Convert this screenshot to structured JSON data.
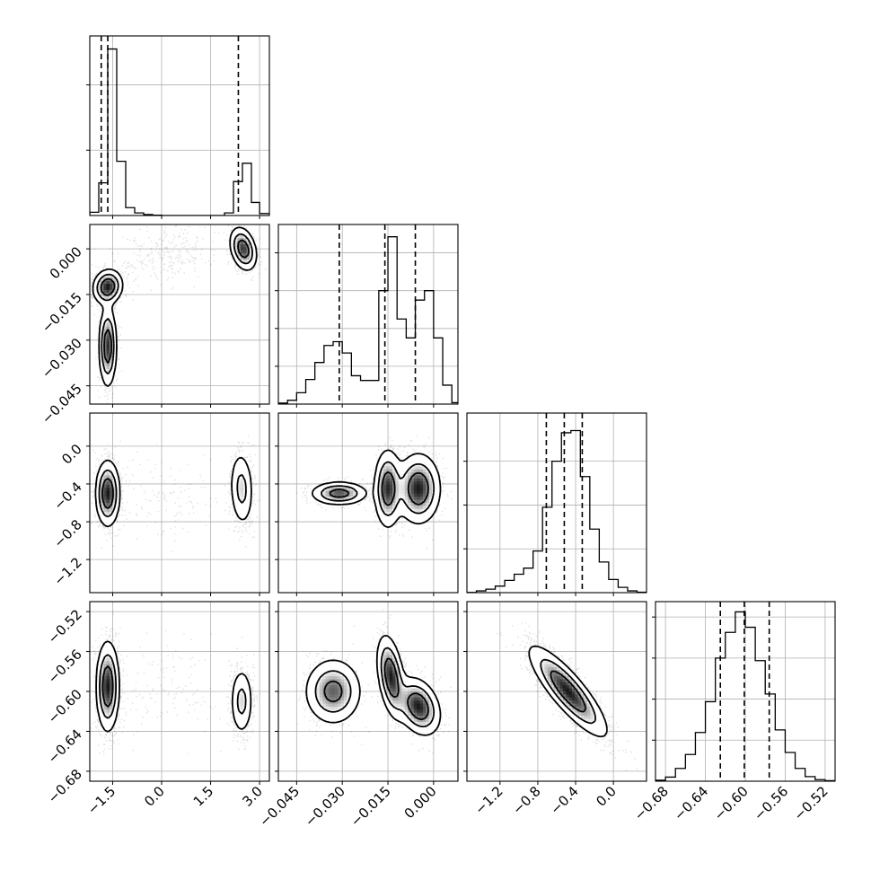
{
  "chart_data": {
    "type": "corner",
    "parameters": [
      {
        "range": [
          -2.2,
          3.3
        ],
        "ticks": [
          -1.5,
          0.0,
          1.5,
          3.0
        ],
        "tick_labels": [
          "−1.5",
          "0.0",
          "1.5",
          "3.0"
        ],
        "histogram": {
          "bin_edges": [
            -2.2,
            -1.925,
            -1.65,
            -1.375,
            -1.1,
            -0.825,
            -0.55,
            -0.275,
            0.0,
            0.275,
            0.55,
            0.825,
            1.1,
            1.375,
            1.65,
            1.925,
            2.2,
            2.475,
            2.75,
            3.0,
            3.3
          ],
          "counts": [
            50,
            500,
            2550,
            830,
            120,
            40,
            15,
            5,
            0,
            0,
            0,
            0,
            0,
            0,
            0,
            40,
            520,
            800,
            200,
            30
          ]
        },
        "hist_ylim": [
          0,
          2750
        ],
        "hist_yticks": [
          1000,
          2000
        ],
        "quantiles": [
          -1.85,
          -1.65,
          2.35
        ]
      },
      {
        "range": [
          -0.051,
          0.008
        ],
        "ticks": [
          -0.045,
          -0.03,
          -0.015,
          0.0
        ],
        "tick_labels": [
          "−0.045",
          "−0.030",
          "−0.015",
          "0.000"
        ],
        "histogram": {
          "bin_edges": [
            -0.051,
            -0.048,
            -0.045,
            -0.042,
            -0.039,
            -0.036,
            -0.033,
            -0.03,
            -0.027,
            -0.024,
            -0.021,
            -0.018,
            -0.015,
            -0.012,
            -0.009,
            -0.006,
            -0.003,
            0.0,
            0.003,
            0.006,
            0.008
          ],
          "counts": [
            10,
            40,
            120,
            260,
            440,
            620,
            660,
            540,
            300,
            250,
            250,
            1200,
            1770,
            900,
            700,
            1100,
            1200,
            700,
            200,
            15
          ]
        },
        "hist_ylim": [
          0,
          1900
        ],
        "hist_yticks": [
          400,
          800,
          1200,
          1600
        ],
        "quantiles": [
          -0.031,
          -0.016,
          -0.006
        ]
      },
      {
        "range": [
          -1.55,
          0.35
        ],
        "ticks": [
          -1.2,
          -0.8,
          -0.4,
          0.0
        ],
        "tick_labels": [
          "−1.2",
          "−0.8",
          "−0.4",
          "0.0"
        ],
        "histogram": {
          "bin_edges": [
            -1.55,
            -1.45,
            -1.35,
            -1.25,
            -1.15,
            -1.05,
            -0.95,
            -0.85,
            -0.75,
            -0.65,
            -0.55,
            -0.45,
            -0.35,
            -0.25,
            -0.15,
            -0.05,
            0.05,
            0.15,
            0.25,
            0.35
          ],
          "counts": [
            5,
            40,
            80,
            150,
            280,
            420,
            560,
            950,
            1950,
            3000,
            3650,
            3700,
            2650,
            1450,
            700,
            300,
            120,
            40,
            10
          ]
        },
        "hist_ylim": [
          0,
          4100
        ],
        "hist_yticks": [
          1000,
          2000,
          3000
        ],
        "quantiles": [
          -0.71,
          -0.52,
          -0.33
        ]
      },
      {
        "range": [
          -0.69,
          -0.51
        ],
        "ticks": [
          -0.68,
          -0.64,
          -0.6,
          -0.56,
          -0.52
        ],
        "tick_labels": [
          "−0.68",
          "−0.64",
          "−0.60",
          "−0.56",
          "−0.52"
        ],
        "histogram": {
          "bin_edges": [
            -0.69,
            -0.68,
            -0.67,
            -0.66,
            -0.65,
            -0.64,
            -0.63,
            -0.62,
            -0.61,
            -0.6,
            -0.59,
            -0.58,
            -0.57,
            -0.56,
            -0.55,
            -0.54,
            -0.53,
            -0.52,
            -0.51
          ],
          "counts": [
            20,
            80,
            250,
            520,
            950,
            1550,
            2400,
            2900,
            3300,
            3000,
            2350,
            1700,
            1000,
            560,
            250,
            90,
            30,
            10
          ]
        },
        "hist_ylim": [
          0,
          3500
        ],
        "hist_yticks": [
          800,
          1600,
          2400,
          3200
        ],
        "quantiles": [
          -0.625,
          -0.601,
          -0.576
        ]
      }
    ],
    "pairs": [
      {
        "x": 0,
        "y": 1,
        "modes": [
          {
            "mx": -1.65,
            "my": -0.0125,
            "sx": 0.22,
            "sy": 0.0028,
            "w": 0.32,
            "rho": 0.1
          },
          {
            "mx": -1.65,
            "my": -0.032,
            "sx": 0.13,
            "sy": 0.0065,
            "w": 0.3,
            "rho": 0.0
          },
          {
            "mx": 2.5,
            "my": 0.0,
            "sx": 0.2,
            "sy": 0.0035,
            "w": 0.28,
            "rho": -0.3
          },
          {
            "mx": 0.1,
            "my": -0.002,
            "sx": 0.9,
            "sy": 0.005,
            "w": 0.1,
            "rho": 0.4,
            "diffuse": true
          }
        ]
      },
      {
        "x": 0,
        "y": 2,
        "modes": [
          {
            "mx": -1.65,
            "my": -0.5,
            "sx": 0.18,
            "sy": 0.17,
            "w": 0.65,
            "rho": 0.0
          },
          {
            "mx": 2.45,
            "my": -0.45,
            "sx": 0.18,
            "sy": 0.2,
            "w": 0.3,
            "rho": -0.1
          },
          {
            "mx": 0.2,
            "my": -0.55,
            "sx": 0.9,
            "sy": 0.22,
            "w": 0.05,
            "rho": 0.0,
            "diffuse": true
          }
        ]
      },
      {
        "x": 0,
        "y": 3,
        "modes": [
          {
            "mx": -1.65,
            "my": -0.595,
            "sx": 0.17,
            "sy": 0.022,
            "w": 0.65,
            "rho": 0.0
          },
          {
            "mx": 2.45,
            "my": -0.61,
            "sx": 0.17,
            "sy": 0.017,
            "w": 0.3,
            "rho": 0.0
          },
          {
            "mx": 0.2,
            "my": -0.6,
            "sx": 0.9,
            "sy": 0.025,
            "w": 0.05,
            "rho": 0.0,
            "diffuse": true
          }
        ]
      },
      {
        "x": 1,
        "y": 2,
        "modes": [
          {
            "mx": -0.031,
            "my": -0.5,
            "sx": 0.0045,
            "sy": 0.06,
            "w": 0.3,
            "rho": 0.0
          },
          {
            "mx": -0.015,
            "my": -0.45,
            "sx": 0.0022,
            "sy": 0.2,
            "w": 0.34,
            "rho": 0.0
          },
          {
            "mx": -0.005,
            "my": -0.45,
            "sx": 0.0035,
            "sy": 0.18,
            "w": 0.36,
            "rho": 0.0
          }
        ]
      },
      {
        "x": 1,
        "y": 3,
        "modes": [
          {
            "mx": -0.033,
            "my": -0.6,
            "sx": 0.0045,
            "sy": 0.016,
            "w": 0.3,
            "rho": 0.0
          },
          {
            "mx": -0.014,
            "my": -0.585,
            "sx": 0.0022,
            "sy": 0.02,
            "w": 0.34,
            "rho": -0.4
          },
          {
            "mx": -0.005,
            "my": -0.615,
            "sx": 0.0035,
            "sy": 0.014,
            "w": 0.36,
            "rho": -0.3
          }
        ]
      },
      {
        "x": 2,
        "y": 3,
        "modes": [
          {
            "mx": -0.48,
            "my": -0.6,
            "sx": 0.2,
            "sy": 0.022,
            "w": 1.0,
            "rho": -0.85
          }
        ]
      }
    ]
  }
}
